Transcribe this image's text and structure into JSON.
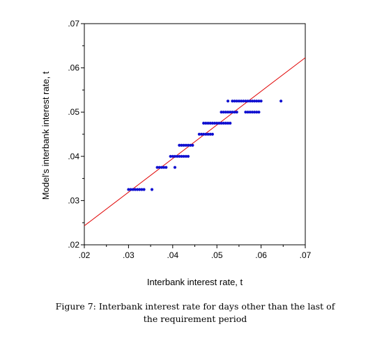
{
  "chart_data": {
    "type": "scatter",
    "xlabel": "Interbank interest rate, t",
    "ylabel": "Model's interbank interest rate, t",
    "xlim": [
      0.02,
      0.07
    ],
    "ylim": [
      0.02,
      0.07
    ],
    "x_ticks": [
      ".02",
      ".03",
      ".04",
      ".05",
      ".06",
      ".07"
    ],
    "y_ticks": [
      ".02",
      ".03",
      ".04",
      ".05",
      ".06",
      ".07"
    ],
    "grid": false,
    "marker_color": "#1010d0",
    "line_color": "#e00000",
    "fit_line": {
      "x": [
        0.02,
        0.07
      ],
      "y": [
        0.0243,
        0.0623
      ]
    },
    "points": {
      "x": [
        0.03,
        0.0305,
        0.031,
        0.0315,
        0.032,
        0.0325,
        0.033,
        0.0335,
        0.0353,
        0.0365,
        0.037,
        0.0375,
        0.038,
        0.0385,
        0.0405,
        0.0395,
        0.04,
        0.0405,
        0.041,
        0.0415,
        0.042,
        0.0425,
        0.043,
        0.0435,
        0.0415,
        0.042,
        0.0425,
        0.043,
        0.0435,
        0.044,
        0.0445,
        0.046,
        0.0465,
        0.047,
        0.0475,
        0.048,
        0.0485,
        0.049,
        0.047,
        0.0475,
        0.048,
        0.0485,
        0.049,
        0.0495,
        0.05,
        0.0505,
        0.051,
        0.0515,
        0.052,
        0.0525,
        0.053,
        0.051,
        0.0515,
        0.052,
        0.0525,
        0.053,
        0.0535,
        0.054,
        0.0545,
        0.0565,
        0.057,
        0.0575,
        0.058,
        0.0585,
        0.059,
        0.0595,
        0.0525,
        0.0535,
        0.054,
        0.0545,
        0.055,
        0.0555,
        0.056,
        0.0565,
        0.057,
        0.0575,
        0.058,
        0.0585,
        0.059,
        0.0595,
        0.06,
        0.0645
      ],
      "y": [
        0.0325,
        0.0325,
        0.0325,
        0.0325,
        0.0325,
        0.0325,
        0.0325,
        0.0325,
        0.0325,
        0.0375,
        0.0375,
        0.0375,
        0.0375,
        0.0375,
        0.0375,
        0.04,
        0.04,
        0.04,
        0.04,
        0.04,
        0.04,
        0.04,
        0.04,
        0.04,
        0.0425,
        0.0425,
        0.0425,
        0.0425,
        0.0425,
        0.0425,
        0.0425,
        0.045,
        0.045,
        0.045,
        0.045,
        0.045,
        0.045,
        0.045,
        0.0475,
        0.0475,
        0.0475,
        0.0475,
        0.0475,
        0.0475,
        0.0475,
        0.0475,
        0.0475,
        0.0475,
        0.0475,
        0.0475,
        0.0475,
        0.05,
        0.05,
        0.05,
        0.05,
        0.05,
        0.05,
        0.05,
        0.05,
        0.05,
        0.05,
        0.05,
        0.05,
        0.05,
        0.05,
        0.05,
        0.0525,
        0.0525,
        0.0525,
        0.0525,
        0.0525,
        0.0525,
        0.0525,
        0.0525,
        0.0525,
        0.0525,
        0.0525,
        0.0525,
        0.0525,
        0.0525,
        0.0525,
        0.0525
      ]
    }
  },
  "caption": {
    "line1": "Figure 7: Interbank interest rate for days other than the last of",
    "line2": "the requirement period"
  }
}
